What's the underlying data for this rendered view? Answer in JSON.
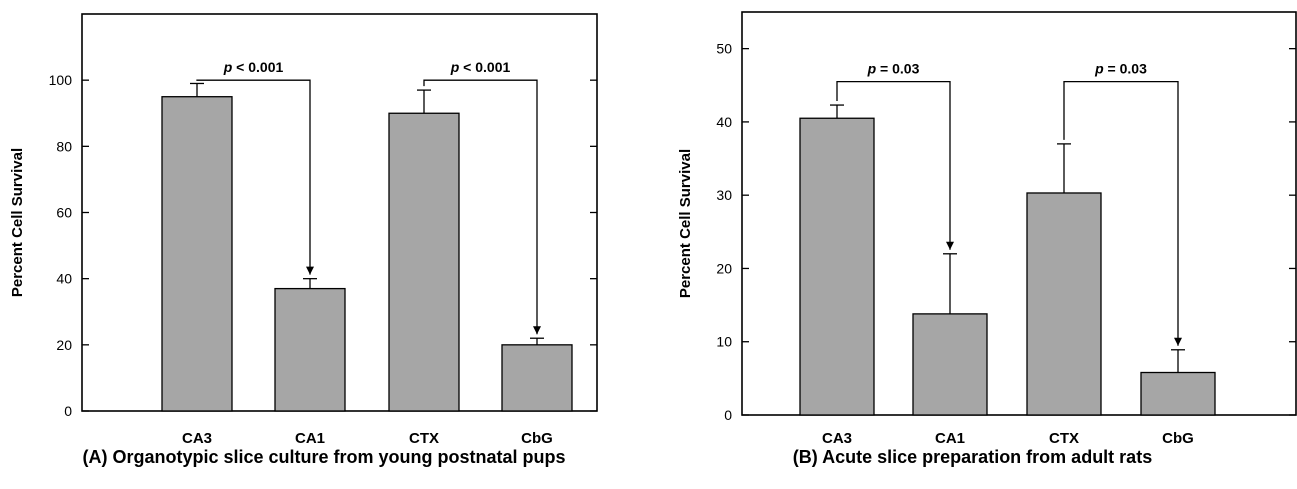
{
  "chart_data": [
    {
      "type": "bar",
      "panel": "A",
      "caption": "(A) Organotypic slice culture from young postnatal pups",
      "ylabel": "Percent Cell Survival",
      "xlabel": "",
      "categories": [
        "CA3",
        "CA1",
        "CTX",
        "CbG"
      ],
      "values": [
        95,
        37,
        90,
        20
      ],
      "errors": [
        4,
        3,
        7,
        2
      ],
      "ylim": [
        0,
        120
      ],
      "yticks": [
        0,
        20,
        40,
        60,
        80,
        100
      ],
      "bar_color": "#a6a6a6",
      "grid": false,
      "annotations": [
        {
          "from": 0,
          "to": 1,
          "label_italic": "p",
          "label_rest": " < 0.001",
          "level": 100
        },
        {
          "from": 2,
          "to": 3,
          "label_italic": "p",
          "label_rest": " < 0.001",
          "level": 100
        }
      ]
    },
    {
      "type": "bar",
      "panel": "B",
      "caption": "(B) Acute slice preparation from adult rats",
      "ylabel": "Percent Cell Survival",
      "xlabel": "",
      "categories": [
        "CA3",
        "CA1",
        "CTX",
        "CbG"
      ],
      "values": [
        40.5,
        13.8,
        30.3,
        5.8
      ],
      "errors": [
        1.8,
        8.2,
        6.7,
        3.1
      ],
      "ylim": [
        0,
        55
      ],
      "yticks": [
        0,
        10,
        20,
        30,
        40,
        50
      ],
      "bar_color": "#a6a6a6",
      "grid": false,
      "annotations": [
        {
          "from": 0,
          "to": 1,
          "label_italic": "p",
          "label_rest": " = 0.03",
          "level": 45.5
        },
        {
          "from": 2,
          "to": 3,
          "label_italic": "p",
          "label_rest": " = 0.03",
          "level": 45.5
        }
      ]
    }
  ]
}
